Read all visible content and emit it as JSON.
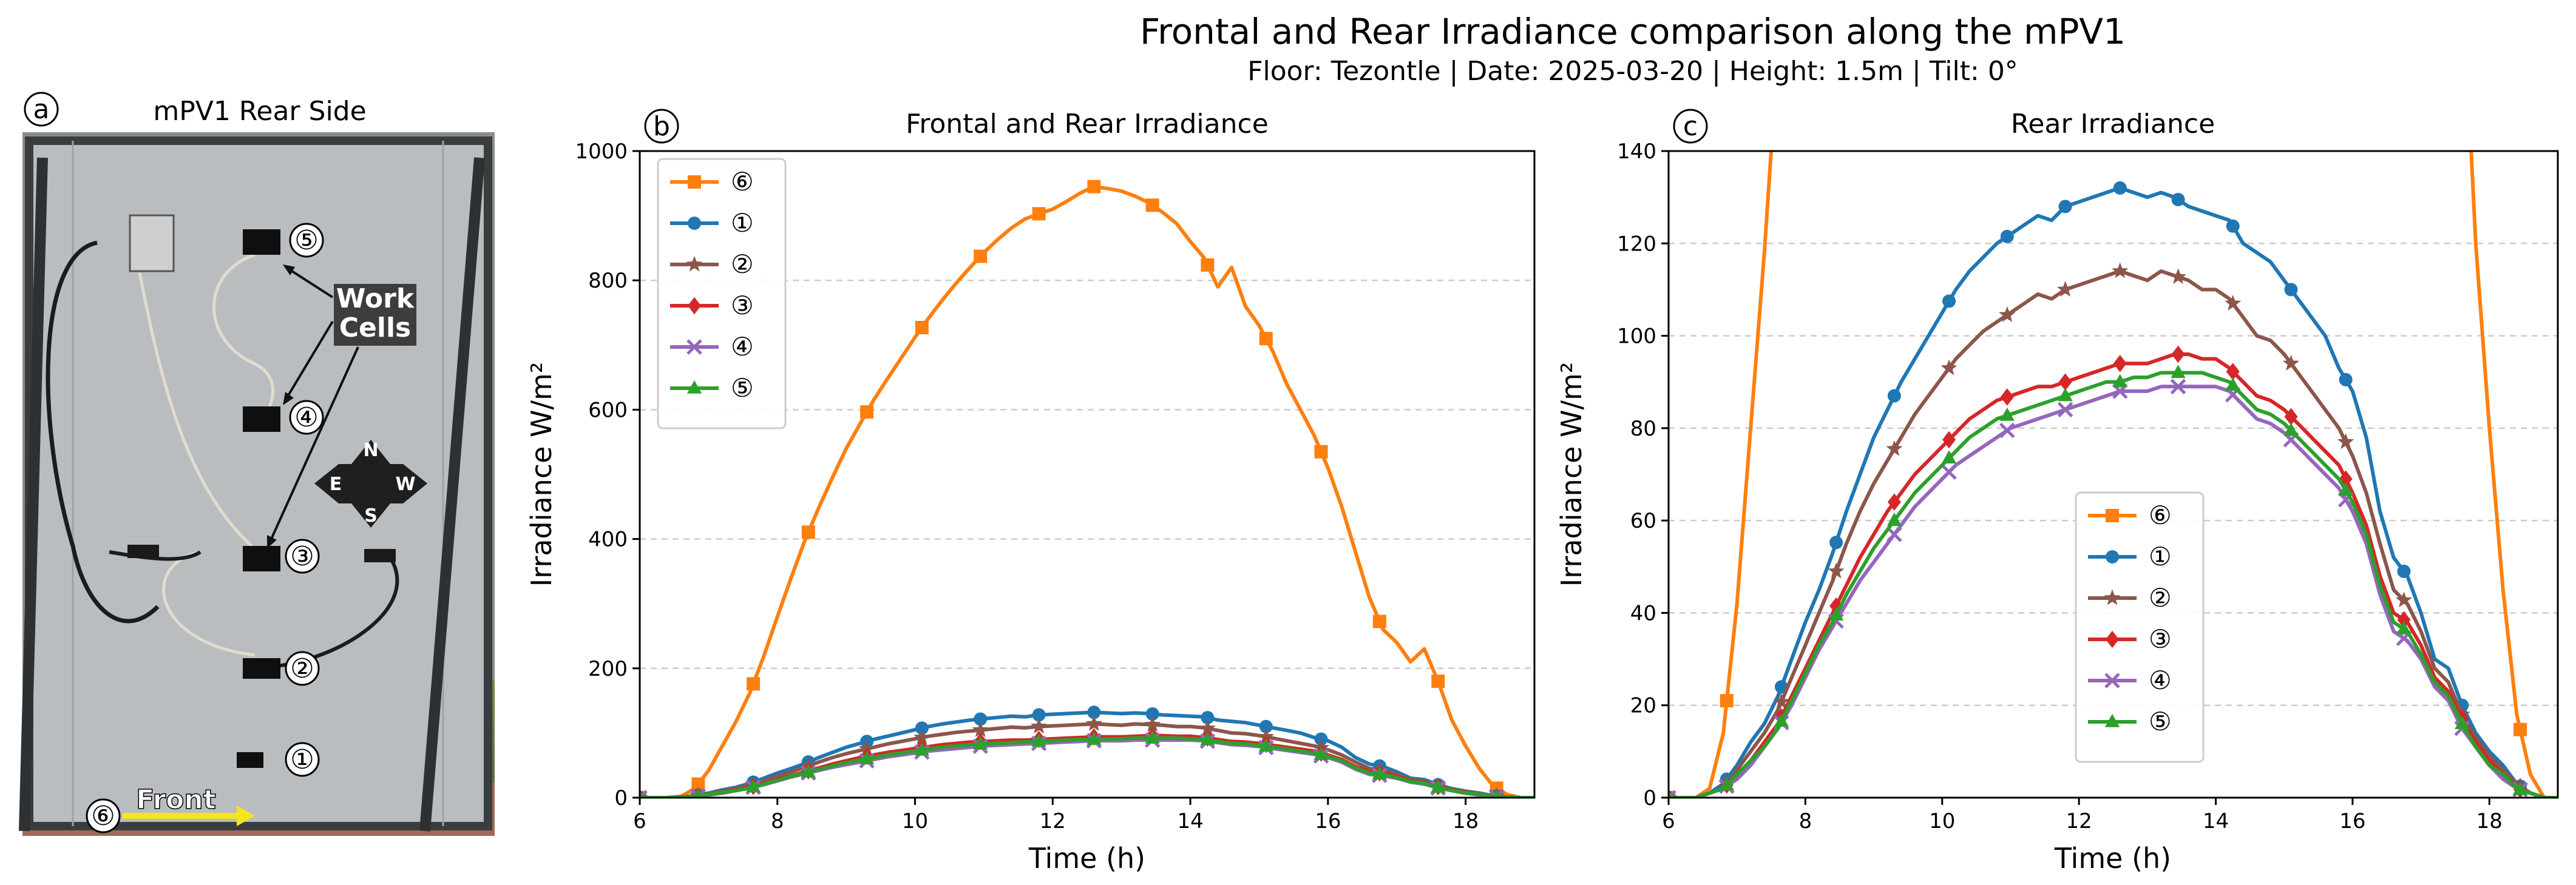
{
  "figure": {
    "title": "Frontal and Rear Irradiance comparison along the mPV1",
    "subtitle": "Floor: Tezontle | Date: 2025-03-20 | Height: 1.5m | Tilt: 0°"
  },
  "photo_panel": {
    "badge": "a",
    "title": "mPV1 Rear Side",
    "annotation": "Work\nCells",
    "compass": {
      "north": "N",
      "south": "S",
      "east": "E",
      "west": "W"
    },
    "front_label": "Front",
    "cell_markers": [
      "⑤",
      "④",
      "③",
      "②",
      "①"
    ],
    "sensor_marker": "⑥"
  },
  "colors": {
    "c6": "#ff7f0e",
    "c1": "#1f77b4",
    "c2": "#8c564b",
    "c3": "#d62728",
    "c4": "#9467bd",
    "c5": "#2ca02c",
    "panel_bg": "#b9bdc0",
    "grid": "#cccccc"
  },
  "chart_data": [
    {
      "type": "line",
      "badge": "b",
      "title": "Frontal and Rear Irradiance",
      "xlabel": "Time (h)",
      "ylabel": "Irradiance W/m²",
      "xlim": [
        6,
        19
      ],
      "ylim": [
        0,
        1000
      ],
      "xticks": [
        6,
        8,
        10,
        12,
        14,
        16,
        18
      ],
      "yticks": [
        0,
        200,
        400,
        600,
        800,
        1000
      ],
      "grid": "horizontal dashed",
      "legend": "top-left",
      "legend_order": [
        "⑥",
        "①",
        "②",
        "③",
        "④",
        "⑤"
      ],
      "x": [
        6.0,
        6.2,
        6.4,
        6.6,
        6.8,
        7.0,
        7.2,
        7.4,
        7.6,
        7.8,
        8.0,
        8.2,
        8.4,
        8.6,
        8.8,
        9.0,
        9.2,
        9.4,
        9.6,
        9.8,
        10.0,
        10.2,
        10.4,
        10.6,
        10.8,
        11.0,
        11.2,
        11.4,
        11.6,
        11.8,
        12.0,
        12.2,
        12.4,
        12.6,
        12.8,
        13.0,
        13.2,
        13.4,
        13.6,
        13.8,
        14.0,
        14.2,
        14.4,
        14.6,
        14.8,
        15.0,
        15.2,
        15.4,
        15.6,
        15.8,
        16.0,
        16.2,
        16.4,
        16.6,
        16.8,
        17.0,
        17.2,
        17.4,
        17.6,
        17.8,
        18.0,
        18.2,
        18.4,
        18.6,
        18.8,
        19.0
      ],
      "series": [
        {
          "name": "⑥",
          "color": "#ff7f0e",
          "marker": "square",
          "values": [
            0,
            0,
            0,
            2,
            14,
            42,
            80,
            118,
            162,
            218,
            280,
            340,
            398,
            448,
            495,
            540,
            578,
            615,
            648,
            680,
            712,
            742,
            770,
            796,
            820,
            843,
            863,
            881,
            895,
            903,
            910,
            922,
            935,
            945,
            942,
            938,
            930,
            920,
            905,
            888,
            860,
            835,
            790,
            820,
            760,
            730,
            690,
            640,
            600,
            560,
            510,
            450,
            380,
            310,
            260,
            240,
            210,
            230,
            180,
            120,
            80,
            45,
            18,
            5,
            0,
            0
          ],
          "marker_x": [
            6.0,
            6.85,
            7.65,
            8.45,
            9.3,
            10.1,
            10.95,
            11.8,
            12.6,
            13.45,
            14.25,
            15.1,
            15.9,
            16.75,
            17.6,
            18.45
          ]
        },
        {
          "name": "①",
          "color": "#1f77b4",
          "marker": "circle",
          "values": [
            0,
            0,
            0,
            1,
            3,
            7,
            12,
            16,
            22,
            30,
            38,
            45,
            53,
            62,
            70,
            78,
            84,
            90,
            95,
            100,
            105,
            110,
            114,
            117,
            120,
            122,
            124,
            126,
            125,
            128,
            129,
            130,
            131,
            132,
            131,
            130,
            131,
            130,
            128,
            127,
            126,
            125,
            120,
            118,
            116,
            112,
            108,
            104,
            100,
            93,
            88,
            78,
            62,
            52,
            48,
            40,
            30,
            28,
            20,
            14,
            10,
            7,
            3,
            1,
            0,
            0
          ],
          "marker_x": [
            6.0,
            6.85,
            7.65,
            8.45,
            9.3,
            10.1,
            10.95,
            11.8,
            12.6,
            13.45,
            14.25,
            15.1,
            15.9,
            16.75,
            17.6,
            18.45
          ]
        },
        {
          "name": "②",
          "color": "#8c564b",
          "marker": "star",
          "values": [
            0,
            0,
            0,
            1,
            2,
            6,
            10,
            14,
            19,
            26,
            33,
            40,
            47,
            55,
            62,
            68,
            73,
            78,
            83,
            87,
            91,
            95,
            98,
            101,
            103,
            105,
            107,
            109,
            108,
            110,
            111,
            112,
            113,
            114,
            113,
            112,
            114,
            113,
            112,
            110,
            110,
            108,
            104,
            100,
            99,
            96,
            92,
            88,
            84,
            80,
            74,
            66,
            55,
            45,
            42,
            36,
            28,
            25,
            18,
            13,
            9,
            6,
            3,
            1,
            0,
            0
          ],
          "marker_x": [
            6.0,
            6.85,
            7.65,
            8.45,
            9.3,
            10.1,
            10.95,
            11.8,
            12.6,
            13.45,
            14.25,
            15.1,
            15.9,
            16.75,
            17.6,
            18.45
          ]
        },
        {
          "name": "③",
          "color": "#d62728",
          "marker": "diamond",
          "values": [
            0,
            0,
            0,
            1,
            2,
            5,
            8,
            12,
            16,
            22,
            28,
            34,
            40,
            46,
            52,
            57,
            62,
            66,
            70,
            73,
            76,
            79,
            82,
            84,
            86,
            87,
            88,
            89,
            89,
            90,
            91,
            92,
            93,
            94,
            94,
            94,
            95,
            96,
            96,
            95,
            95,
            93,
            90,
            87,
            86,
            84,
            81,
            78,
            75,
            72,
            66,
            59,
            48,
            40,
            38,
            33,
            26,
            23,
            17,
            12,
            8,
            5,
            2,
            1,
            0,
            0
          ],
          "marker_x": [
            6.0,
            6.85,
            7.65,
            8.45,
            9.3,
            10.1,
            10.95,
            11.8,
            12.6,
            13.45,
            14.25,
            15.1,
            15.9,
            16.75,
            17.6,
            18.45
          ]
        },
        {
          "name": "④",
          "color": "#9467bd",
          "marker": "x",
          "values": [
            0,
            0,
            0,
            1,
            2,
            4,
            7,
            11,
            15,
            20,
            26,
            32,
            37,
            42,
            47,
            51,
            55,
            59,
            63,
            66,
            69,
            72,
            74,
            76,
            78,
            80,
            81,
            82,
            83,
            84,
            85,
            86,
            87,
            88,
            88,
            88,
            89,
            89,
            89,
            89,
            89,
            88,
            85,
            82,
            81,
            79,
            76,
            73,
            70,
            67,
            62,
            55,
            44,
            36,
            34,
            30,
            24,
            21,
            15,
            11,
            7,
            4,
            2,
            1,
            0,
            0
          ],
          "marker_x": [
            6.0,
            6.85,
            7.65,
            8.45,
            9.3,
            10.1,
            10.95,
            11.8,
            12.6,
            13.45,
            14.25,
            15.1,
            15.9,
            16.75,
            17.6,
            18.45
          ]
        },
        {
          "name": "⑤",
          "color": "#2ca02c",
          "marker": "triangle",
          "values": [
            0,
            0,
            0,
            1,
            2,
            5,
            8,
            11,
            15,
            21,
            27,
            33,
            38,
            44,
            49,
            54,
            58,
            62,
            66,
            69,
            72,
            75,
            78,
            80,
            82,
            83,
            84,
            85,
            86,
            87,
            88,
            89,
            90,
            90,
            91,
            91,
            92,
            92,
            92,
            92,
            91,
            90,
            87,
            84,
            83,
            81,
            78,
            75,
            72,
            69,
            64,
            57,
            46,
            38,
            36,
            31,
            25,
            22,
            16,
            11,
            7,
            5,
            2,
            1,
            0,
            0
          ],
          "marker_x": [
            6.0,
            6.85,
            7.65,
            8.45,
            9.3,
            10.1,
            10.95,
            11.8,
            12.6,
            13.45,
            14.25,
            15.1,
            15.9,
            16.75,
            17.6,
            18.45
          ]
        }
      ]
    },
    {
      "type": "line",
      "badge": "c",
      "title": "Rear Irradiance",
      "xlabel": "Time (h)",
      "ylabel": "Irradiance W/m²",
      "xlim": [
        6,
        19
      ],
      "ylim": [
        0,
        140
      ],
      "xticks": [
        6,
        8,
        10,
        12,
        14,
        16,
        18
      ],
      "yticks": [
        0,
        20,
        40,
        60,
        80,
        100,
        120,
        140
      ],
      "grid": "horizontal dashed",
      "legend": "center",
      "legend_order": [
        "⑥",
        "①",
        "②",
        "③",
        "④",
        "⑤"
      ],
      "same_series_as": "b"
    }
  ]
}
